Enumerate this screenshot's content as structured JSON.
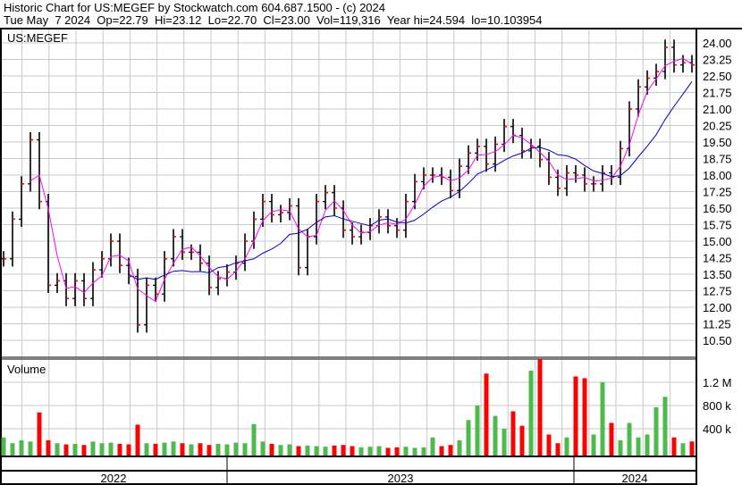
{
  "header": {
    "title": "Historic Chart for US:MEGEF by Stockwatch.com 604.687.1500 - (c) 2024",
    "quote": "Tue May  7 2024  Op=22.79  Hi=23.12  Lo=22.70  Cl=23.00  Vol=119,316  Year hi=24.594  lo=10.103954"
  },
  "chart_data": {
    "type": "ohlc-bar with moving averages and volume",
    "symbol_label": "US:MEGEF",
    "volume_label": "Volume",
    "price_axis": {
      "ticks": [
        "24.00",
        "23.25",
        "22.50",
        "21.75",
        "21.00",
        "20.25",
        "19.50",
        "18.75",
        "18.00",
        "17.25",
        "16.50",
        "15.75",
        "15.00",
        "14.25",
        "13.50",
        "12.75",
        "12.00",
        "11.25",
        "10.50"
      ],
      "ylim": [
        9.9,
        24.6
      ]
    },
    "volume_axis": {
      "ticks": [
        "1.2 M",
        "800 k",
        "400 k"
      ],
      "tick_values": [
        1200,
        800,
        400
      ],
      "unit": "thousands",
      "ylim": [
        0,
        1600
      ]
    },
    "x_axis": {
      "years": [
        "2022",
        "2023",
        "2024"
      ]
    },
    "grid": true,
    "colors": {
      "bars": "#000000",
      "close_tick": "#ff0000",
      "ma_short": "#ff00ff",
      "ma_long": "#0000cc",
      "vol_up": "#4cbb4c",
      "vol_down": "#ff0000",
      "grid": "#c8c8c8"
    },
    "close": [
      14.2,
      16.0,
      17.6,
      19.6,
      16.8,
      13.0,
      13.2,
      12.4,
      13.2,
      12.4,
      13.7,
      14.2,
      15.0,
      13.9,
      13.4,
      11.2,
      13.0,
      12.6,
      14.2,
      15.2,
      14.5,
      14.5,
      14.0,
      12.9,
      13.3,
      13.6,
      14.0,
      15.0,
      16.0,
      16.8,
      16.2,
      16.3,
      16.6,
      13.8,
      15.2,
      16.8,
      17.2,
      16.5,
      15.5,
      15.2,
      15.4,
      15.7,
      16.1,
      15.7,
      15.5,
      16.8,
      17.7,
      18.0,
      18.0,
      17.9,
      17.3,
      18.4,
      19.0,
      19.3,
      18.5,
      19.4,
      20.2,
      19.8,
      19.1,
      19.3,
      18.7,
      17.9,
      17.4,
      18.1,
      18.0,
      17.6,
      17.6,
      18.1,
      17.9,
      19.2,
      21.0,
      22.0,
      22.4,
      22.7,
      23.8,
      23.0,
      23.1,
      23.0
    ],
    "volume_k": [
      250,
      150,
      200,
      180,
      680,
      200,
      150,
      130,
      140,
      120,
      180,
      150,
      160,
      140,
      130,
      470,
      150,
      140,
      160,
      180,
      150,
      130,
      150,
      120,
      140,
      130,
      160,
      150,
      480,
      180,
      140,
      120,
      130,
      100,
      110,
      100,
      90,
      110,
      120,
      100,
      80,
      90,
      100,
      70,
      80,
      90,
      70,
      80,
      250,
      100,
      120,
      200,
      550,
      800,
      1350,
      620,
      400,
      700,
      450,
      1400,
      1600,
      300,
      150,
      250,
      1300,
      1270,
      300,
      1200,
      500,
      200,
      500,
      250,
      300,
      770,
      950,
      250,
      150,
      180
    ]
  }
}
